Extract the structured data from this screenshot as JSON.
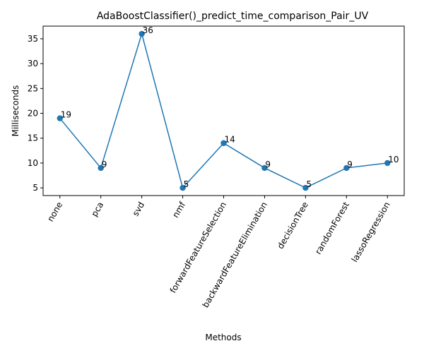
{
  "chart_data": {
    "type": "line",
    "title": "AdaBoostClassifier()_predict_time_comparison_Pair_UV",
    "xlabel": "Methods",
    "ylabel": "Milliseconds",
    "categories": [
      "none",
      "pca",
      "svd",
      "nmf",
      "forwardFeatureSelection",
      "backwardFeatureElimination",
      "decisionTree",
      "randomForest",
      "lassoRegression"
    ],
    "series": [
      {
        "values": [
          19,
          9,
          36,
          5,
          14,
          9,
          5,
          9,
          10
        ]
      }
    ],
    "data_labels": [
      "19",
      "9",
      "36",
      "5",
      "14",
      "9",
      "5",
      "9",
      "10"
    ],
    "yticks": [
      5,
      10,
      15,
      20,
      25,
      30,
      35
    ],
    "ylim": [
      3.45,
      37.55
    ],
    "grid": false,
    "color": "#1f77b4",
    "marker": "circle"
  }
}
